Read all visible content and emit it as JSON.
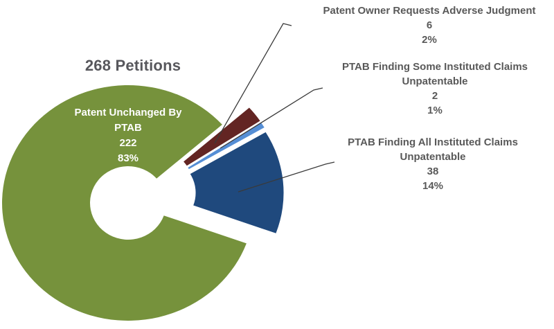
{
  "chart_data": {
    "type": "pie",
    "subtype": "exploded-donut",
    "title": "268 Petitions",
    "total": 268,
    "legend_position": "none",
    "label_style": "callout labels on right with leader lines; largest slice labeled inside",
    "segments": [
      {
        "label": "Patent Owner Requests Adverse Judgment",
        "label_line2": "",
        "value": 6,
        "pct": "2%",
        "color": "#632523",
        "exploded": true
      },
      {
        "label": "PTAB Finding Some Instituted Claims",
        "label_line2": "Unpatentable",
        "value": 2,
        "pct": "1%",
        "color": "#558ED5",
        "exploded": true
      },
      {
        "label": "PTAB Finding All Instituted Claims",
        "label_line2": "Unpatentable",
        "value": 38,
        "pct": "14%",
        "color": "#1F497D",
        "exploded": true
      },
      {
        "label": "Patent Unchanged By",
        "label_line2": "PTAB",
        "value": 222,
        "pct": "83%",
        "color": "#76923C",
        "exploded": false
      }
    ]
  },
  "colors": {
    "background": "#FFFFFF",
    "title_text": "#57575C",
    "label_text": "#595959",
    "inner_label_text": "#FFFFFF",
    "leader_line": "#3A3A3A"
  }
}
